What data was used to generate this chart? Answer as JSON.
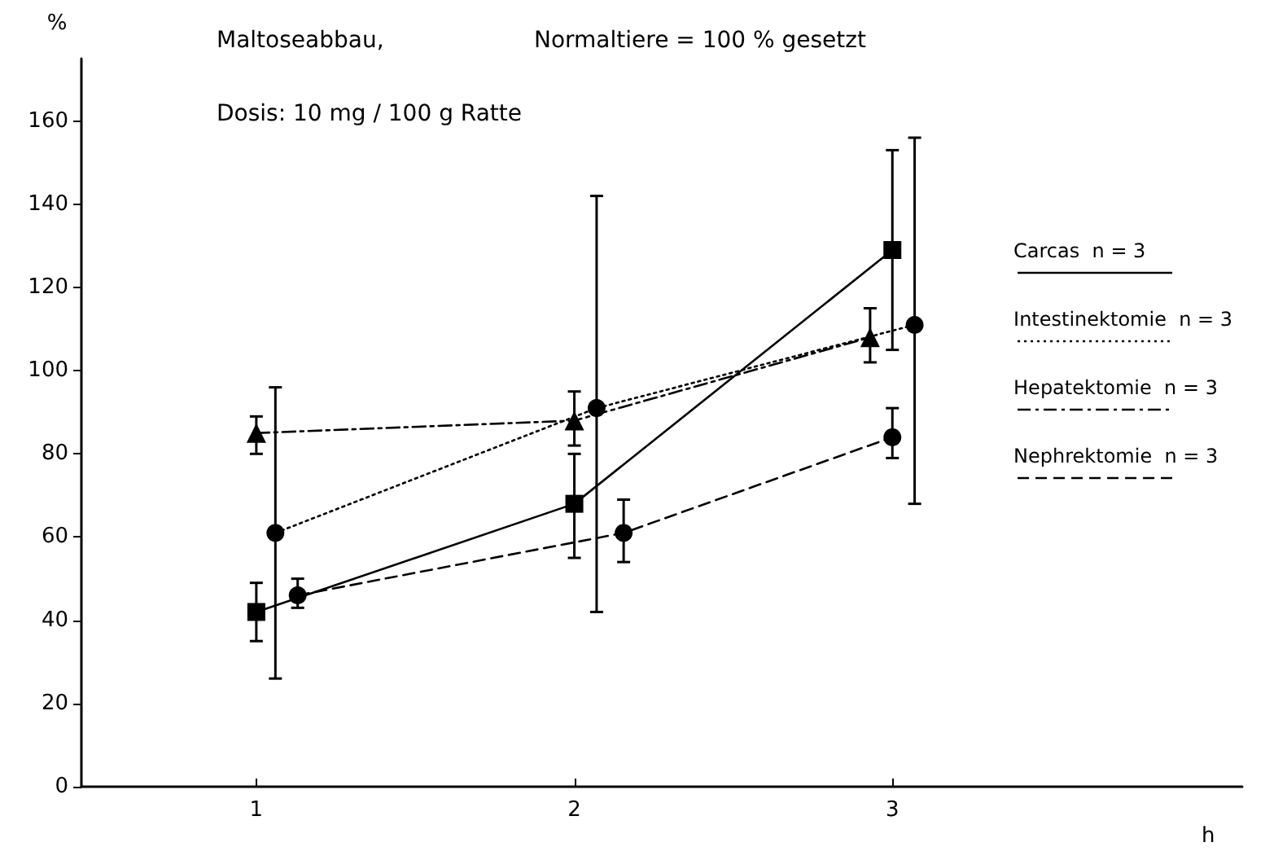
{
  "chart_data": {
    "type": "line",
    "title": "Maltoseabbau,",
    "subtitle": "Normaltiere = 100 % gesetzt",
    "annotations": [
      "Dosis: 10 mg / 100 g Ratte"
    ],
    "xlabel": "h",
    "ylabel": "%",
    "xlim": [
      0.45,
      4.1
    ],
    "xticks": [
      1,
      2,
      3
    ],
    "ylim": [
      0,
      175
    ],
    "yticks": [
      0,
      20,
      40,
      60,
      80,
      100,
      120,
      140,
      160
    ],
    "grid": false,
    "legend": "right",
    "series": [
      {
        "name": "Carcas  n = 3",
        "color": "#000000",
        "marker": "square",
        "line_style": "solid",
        "x": [
          1,
          2,
          3
        ],
        "values": [
          42,
          68,
          129
        ],
        "errors": [
          [
            35,
            49
          ],
          [
            55,
            80
          ],
          [
            105,
            153
          ]
        ]
      },
      {
        "name": "Intestinektomie  n = 3",
        "color": "#000000",
        "marker": "circle",
        "line_style": "dotted",
        "x": [
          1.06,
          2.07,
          3.07
        ],
        "values": [
          61,
          91,
          111
        ],
        "errors": [
          [
            26,
            96
          ],
          [
            42,
            142
          ],
          [
            68,
            156
          ]
        ]
      },
      {
        "name": "Hepatektomie  n = 3",
        "color": "#000000",
        "marker": "triangle",
        "line_style": "dashdot",
        "x": [
          1,
          2,
          2.93
        ],
        "values": [
          85,
          88,
          108
        ],
        "errors": [
          [
            80,
            89
          ],
          [
            82,
            95
          ],
          [
            102,
            115
          ]
        ]
      },
      {
        "name": "Nephrektomie  n = 3",
        "color": "#000000",
        "marker": "circle",
        "line_style": "dashed",
        "x": [
          1.13,
          2.155,
          3
        ],
        "values": [
          46,
          61,
          84
        ],
        "errors": [
          [
            43,
            50
          ],
          [
            54,
            69
          ],
          [
            79,
            91
          ]
        ]
      }
    ]
  }
}
